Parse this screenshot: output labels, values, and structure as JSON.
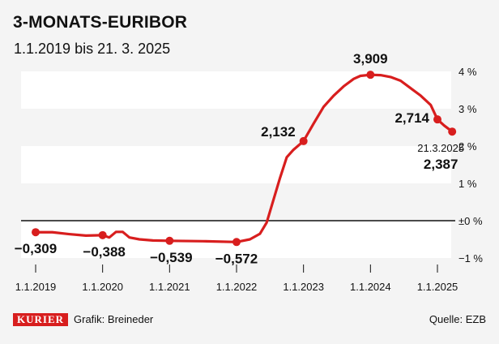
{
  "header": {
    "title": "3-MONATS-EURIBOR",
    "subtitle": "1.1.2019 bis 21. 3. 2025"
  },
  "footer": {
    "logo": "KURIER",
    "credit": "Grafik: Breineder",
    "source": "Quelle: EZB"
  },
  "colors": {
    "line": "#d81e1e",
    "band": "#ffffff",
    "background": "#f4f4f4",
    "zero_line": "#111111"
  },
  "chart_data": {
    "type": "line",
    "title": "3-MONATS-EURIBOR",
    "subtitle": "1.1.2019 bis 21. 3. 2025",
    "x_ticks": [
      "1.1.2019",
      "1.1.2020",
      "1.1.2021",
      "1.1.2022",
      "1.1.2023",
      "1.1.2024",
      "1.1.2025"
    ],
    "y_ticks": [
      "4 %",
      "3 %",
      "2 %",
      "1 %",
      "±0 %",
      "−1 %"
    ],
    "y_tick_values": [
      4,
      3,
      2,
      1,
      0,
      -1
    ],
    "ylim": [
      -1,
      4
    ],
    "unit": "%",
    "grid": true,
    "series": [
      {
        "x": [
          2019.0,
          2019.25,
          2019.5,
          2019.75,
          2020.0,
          2020.1,
          2020.2,
          2020.3,
          2020.4,
          2020.55,
          2020.75,
          2021.0,
          2021.5,
          2022.0,
          2022.2,
          2022.35,
          2022.45,
          2022.55,
          2022.65,
          2022.75,
          2022.85,
          2023.0,
          2023.15,
          2023.3,
          2023.45,
          2023.6,
          2023.75,
          2023.85,
          2024.0,
          2024.15,
          2024.3,
          2024.45,
          2024.6,
          2024.75,
          2024.9,
          2025.0,
          2025.1,
          2025.22
        ],
        "y": [
          -0.309,
          -0.31,
          -0.36,
          -0.4,
          -0.388,
          -0.45,
          -0.3,
          -0.3,
          -0.45,
          -0.5,
          -0.53,
          -0.539,
          -0.55,
          -0.572,
          -0.5,
          -0.35,
          -0.05,
          0.55,
          1.15,
          1.7,
          1.9,
          2.132,
          2.6,
          3.05,
          3.35,
          3.6,
          3.8,
          3.88,
          3.909,
          3.9,
          3.85,
          3.75,
          3.55,
          3.35,
          3.1,
          2.714,
          2.55,
          2.387
        ]
      }
    ],
    "labeled_points": [
      {
        "x": 2019.0,
        "y": -0.309,
        "label": "−0,309"
      },
      {
        "x": 2020.0,
        "y": -0.388,
        "label": "−0,388"
      },
      {
        "x": 2021.0,
        "y": -0.539,
        "label": "−0,539"
      },
      {
        "x": 2022.0,
        "y": -0.572,
        "label": "−0,572"
      },
      {
        "x": 2023.0,
        "y": 2.132,
        "label": "2,132"
      },
      {
        "x": 2024.0,
        "y": 3.909,
        "label": "3,909"
      },
      {
        "x": 2025.0,
        "y": 2.714,
        "label": "2,714"
      },
      {
        "x": 2025.22,
        "y": 2.387,
        "label": "2,387",
        "date": "21.3.2025"
      }
    ]
  }
}
